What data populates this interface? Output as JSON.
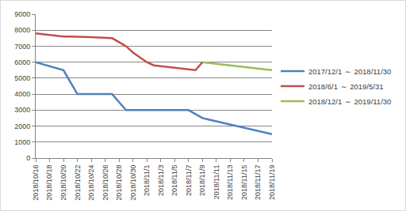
{
  "chart_data": {
    "type": "line",
    "categories": [
      "2018/10/16",
      null,
      "2018/10/18",
      null,
      "2018/10/20",
      null,
      "2018/10/22",
      null,
      "2018/10/24",
      null,
      "2018/10/26",
      null,
      "2018/10/28",
      null,
      "2018/10/30",
      null,
      "2018/11/1",
      null,
      "2018/11/3",
      null,
      "2018/11/5",
      null,
      "2018/11/7",
      null,
      "2018/11/9",
      null,
      "2018/11/11",
      null,
      "2018/11/13",
      null,
      "2018/11/15",
      null,
      "2018/11/17",
      null,
      "2018/11/19"
    ],
    "series": [
      {
        "name": "2017/12/1 ～ 2018/11/30",
        "color": "#4F81BD",
        "values": [
          6000,
          5875,
          5750,
          5625,
          5500,
          4750,
          4000,
          4000,
          4000,
          4000,
          4000,
          4000,
          3500,
          3000,
          3000,
          3000,
          3000,
          3000,
          3000,
          3000,
          3000,
          3000,
          3000,
          2750,
          2500,
          2400,
          2300,
          2200,
          2100,
          2000,
          1900,
          1800,
          1700,
          1600,
          1500
        ]
      },
      {
        "name": "2018/6/1 ～ 2019/5/31",
        "color": "#C0504D",
        "values": [
          7800,
          7750,
          7700,
          7650,
          7600,
          7600,
          7600,
          7580,
          7560,
          7540,
          7520,
          7500,
          7250,
          7000,
          6600,
          6300,
          6000,
          5800,
          5750,
          5700,
          5650,
          5600,
          5550,
          5500,
          6000,
          null,
          null,
          null,
          null,
          null,
          null,
          null,
          null,
          null,
          null
        ]
      },
      {
        "name": "2018/12/1 ～ 2019/11/30",
        "color": "#9BBB59",
        "values": [
          null,
          null,
          null,
          null,
          null,
          null,
          null,
          null,
          null,
          null,
          null,
          null,
          null,
          null,
          null,
          null,
          null,
          null,
          null,
          null,
          null,
          null,
          null,
          null,
          6000,
          5950,
          5900,
          5850,
          5800,
          5750,
          5700,
          5650,
          5600,
          5550,
          5500
        ]
      }
    ],
    "ylim": [
      0,
      9000
    ],
    "yticks": [
      0,
      1000,
      2000,
      3000,
      4000,
      5000,
      6000,
      7000,
      8000,
      9000
    ],
    "grid": true,
    "legend": "right"
  }
}
